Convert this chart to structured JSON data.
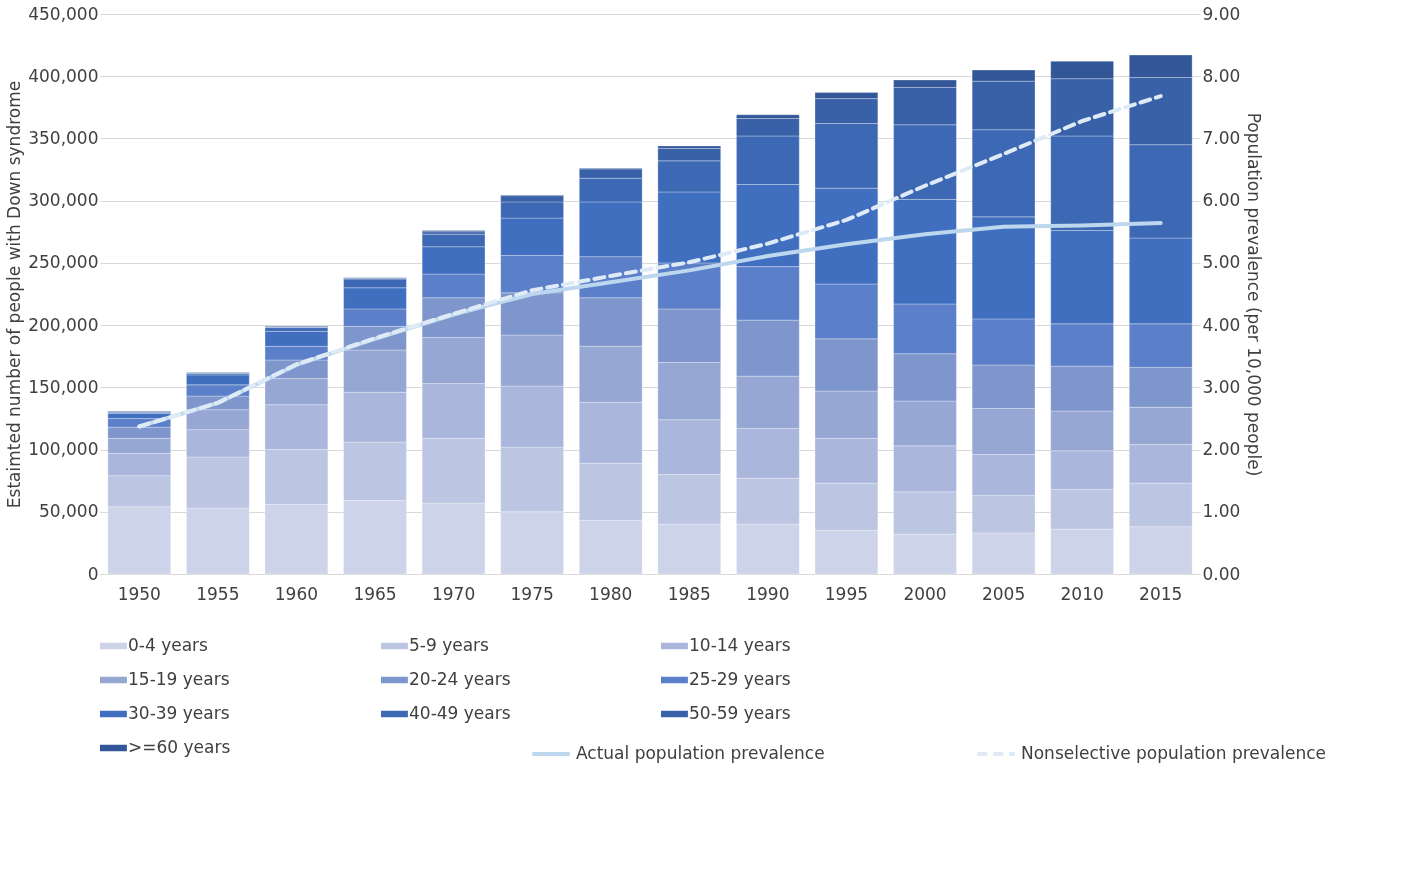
{
  "chart_data": {
    "type": "bar",
    "stacked": true,
    "ylabel": "Estaimted number of people with Down syndrome",
    "y2label": "Population prevalence (per 10,000 people)",
    "categories": [
      "1950",
      "1955",
      "1960",
      "1965",
      "1970",
      "1975",
      "1980",
      "1985",
      "1990",
      "1995",
      "2000",
      "2005",
      "2010",
      "2015"
    ],
    "ylim": [
      0,
      450000
    ],
    "yticks": [
      {
        "value": 0,
        "label": "0"
      },
      {
        "value": 50000,
        "label": "50,000"
      },
      {
        "value": 100000,
        "label": "100,000"
      },
      {
        "value": 150000,
        "label": "150,000"
      },
      {
        "value": 200000,
        "label": "200,000"
      },
      {
        "value": 250000,
        "label": "250,000"
      },
      {
        "value": 300000,
        "label": "300,000"
      },
      {
        "value": 350000,
        "label": "350,000"
      },
      {
        "value": 400000,
        "label": "400,000"
      },
      {
        "value": 450000,
        "label": "450,000"
      }
    ],
    "y2lim": [
      0,
      9
    ],
    "y2ticks": [
      {
        "value": 0,
        "label": "0.00"
      },
      {
        "value": 1,
        "label": "1.00"
      },
      {
        "value": 2,
        "label": "2.00"
      },
      {
        "value": 3,
        "label": "3.00"
      },
      {
        "value": 4,
        "label": "4.00"
      },
      {
        "value": 5,
        "label": "5.00"
      },
      {
        "value": 6,
        "label": "6.00"
      },
      {
        "value": 7,
        "label": "7.00"
      },
      {
        "value": 8,
        "label": "8.00"
      },
      {
        "value": 9,
        "label": "9.00"
      }
    ],
    "grid": "y",
    "legend": "bottom",
    "series": [
      {
        "name": "0-4 years",
        "color": "#cdd3e8",
        "values": [
          54000,
          53000,
          56000,
          59000,
          57000,
          50000,
          43000,
          40000,
          40000,
          35000,
          32000,
          33000,
          36000,
          38000
        ]
      },
      {
        "name": "5-9 years",
        "color": "#bcc5e2",
        "values": [
          25000,
          41000,
          44000,
          47000,
          52000,
          52000,
          46000,
          40000,
          37000,
          38000,
          34000,
          30000,
          32000,
          35000
        ]
      },
      {
        "name": "10-14 years",
        "color": "#aab6dc",
        "values": [
          18000,
          22000,
          36000,
          40000,
          44000,
          49000,
          49000,
          44000,
          40000,
          36000,
          37000,
          33000,
          31000,
          31000
        ]
      },
      {
        "name": "15-19 years",
        "color": "#96a7d4",
        "values": [
          12000,
          16000,
          21000,
          34000,
          37000,
          41000,
          45000,
          46000,
          42000,
          38000,
          36000,
          37000,
          32000,
          30000
        ]
      },
      {
        "name": "20-24 years",
        "color": "#7f96cd",
        "values": [
          9000,
          11000,
          15000,
          19000,
          32000,
          34000,
          39000,
          43000,
          45000,
          42000,
          38000,
          35000,
          36000,
          32000
        ]
      },
      {
        "name": "25-29 years",
        "color": "#5b7fc8",
        "values": [
          7000,
          9000,
          11000,
          14000,
          19000,
          30000,
          33000,
          37000,
          43000,
          44000,
          40000,
          37000,
          34000,
          35000
        ]
      },
      {
        "name": "30-39 years",
        "color": "#416fc0",
        "values": [
          4000,
          8000,
          12000,
          17000,
          22000,
          30000,
          44000,
          57000,
          66000,
          77000,
          84000,
          82000,
          75000,
          69000
        ]
      },
      {
        "name": "40-49 years",
        "color": "#3d68b4",
        "values": [
          1000,
          1000,
          3000,
          7000,
          10000,
          13000,
          19000,
          25000,
          39000,
          52000,
          60000,
          70000,
          76000,
          75000
        ]
      },
      {
        "name": "50-59 years",
        "color": "#3861a8",
        "values": [
          500,
          500,
          500,
          500,
          2000,
          5000,
          7500,
          10000,
          14000,
          20000,
          30000,
          39000,
          46000,
          54000
        ]
      },
      {
        "name": ">=60 years",
        "color": "#325697",
        "values": [
          500,
          500,
          500,
          500,
          1000,
          500,
          500,
          2000,
          3000,
          5000,
          6000,
          9000,
          14000,
          18000
        ]
      },
      {
        "name": "Actual population prevalence",
        "type": "line",
        "axis": "y2",
        "color": "#bdd7ee",
        "line_style": "solid",
        "values": [
          2.37,
          2.75,
          3.36,
          3.78,
          4.17,
          4.5,
          4.69,
          4.88,
          5.11,
          5.3,
          5.46,
          5.58,
          5.6,
          5.64
        ]
      },
      {
        "name": "Nonselective population prevalence",
        "type": "line",
        "axis": "y2",
        "color": "#deebf7",
        "line_style": "dashed",
        "values": [
          2.37,
          2.75,
          3.37,
          3.79,
          4.18,
          4.56,
          4.79,
          5.01,
          5.31,
          5.69,
          6.24,
          6.75,
          7.28,
          7.68
        ]
      }
    ]
  }
}
